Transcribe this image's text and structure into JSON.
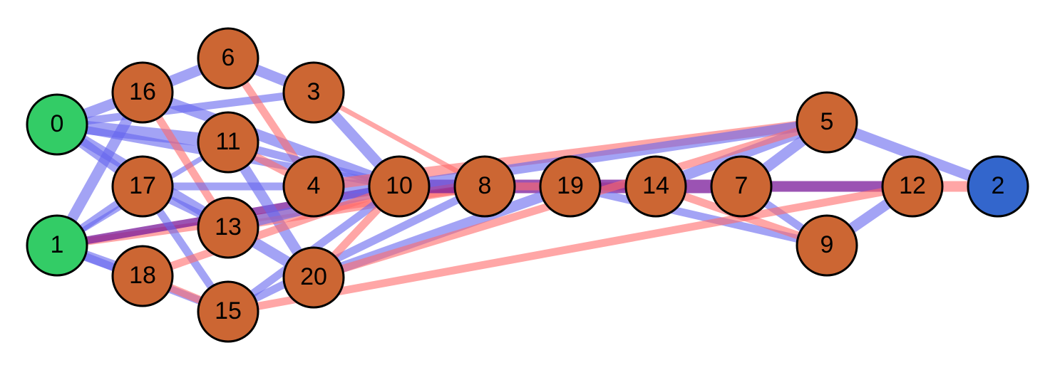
{
  "colors": {
    "source_node": "#33cc66",
    "sink_node": "#3366cc",
    "inner_node": "#cc6633",
    "node_stroke": "#000000",
    "edge_blue": "#6666ee",
    "edge_red": "#ff6b6b",
    "edge_purple": "#7a1a9a"
  },
  "nodes": [
    {
      "id": "0",
      "label": "0",
      "kind": "source"
    },
    {
      "id": "1",
      "label": "1",
      "kind": "source"
    },
    {
      "id": "2",
      "label": "2",
      "kind": "sink"
    },
    {
      "id": "3",
      "label": "3",
      "kind": "inner"
    },
    {
      "id": "4",
      "label": "4",
      "kind": "inner"
    },
    {
      "id": "5",
      "label": "5",
      "kind": "inner"
    },
    {
      "id": "6",
      "label": "6",
      "kind": "inner"
    },
    {
      "id": "7",
      "label": "7",
      "kind": "inner"
    },
    {
      "id": "8",
      "label": "8",
      "kind": "inner"
    },
    {
      "id": "9",
      "label": "9",
      "kind": "inner"
    },
    {
      "id": "10",
      "label": "10",
      "kind": "inner"
    },
    {
      "id": "11",
      "label": "11",
      "kind": "inner"
    },
    {
      "id": "12",
      "label": "12",
      "kind": "inner"
    },
    {
      "id": "13",
      "label": "13",
      "kind": "inner"
    },
    {
      "id": "14",
      "label": "14",
      "kind": "inner"
    },
    {
      "id": "15",
      "label": "15",
      "kind": "inner"
    },
    {
      "id": "16",
      "label": "16",
      "kind": "inner"
    },
    {
      "id": "17",
      "label": "17",
      "kind": "inner"
    },
    {
      "id": "18",
      "label": "18",
      "kind": "inner"
    },
    {
      "id": "19",
      "label": "19",
      "kind": "inner"
    },
    {
      "id": "20",
      "label": "20",
      "kind": "inner"
    }
  ],
  "edges": [
    {
      "from": "0",
      "to": "16",
      "color": "blue",
      "weight": 3
    },
    {
      "from": "0",
      "to": "11",
      "color": "blue",
      "weight": 4
    },
    {
      "from": "0",
      "to": "17",
      "color": "blue",
      "weight": 3
    },
    {
      "from": "0",
      "to": "3",
      "color": "blue",
      "weight": 2
    },
    {
      "from": "0",
      "to": "20",
      "color": "blue",
      "weight": 3
    },
    {
      "from": "0",
      "to": "10",
      "color": "blue",
      "weight": 2
    },
    {
      "from": "1",
      "to": "17",
      "color": "blue",
      "weight": 2
    },
    {
      "from": "1",
      "to": "16",
      "color": "blue",
      "weight": 3
    },
    {
      "from": "1",
      "to": "18",
      "color": "blue",
      "weight": 3
    },
    {
      "from": "1",
      "to": "15",
      "color": "blue",
      "weight": 2
    },
    {
      "from": "1",
      "to": "11",
      "color": "blue",
      "weight": 1
    },
    {
      "from": "1",
      "to": "8",
      "color": "red",
      "weight": 2
    },
    {
      "from": "1",
      "to": "10",
      "color": "purple",
      "weight": 2
    },
    {
      "from": "16",
      "to": "6",
      "color": "blue",
      "weight": 3
    },
    {
      "from": "16",
      "to": "10",
      "color": "blue",
      "weight": 3
    },
    {
      "from": "16",
      "to": "13",
      "color": "red",
      "weight": 2
    },
    {
      "from": "6",
      "to": "3",
      "color": "blue",
      "weight": 3
    },
    {
      "from": "6",
      "to": "4",
      "color": "red",
      "weight": 2
    },
    {
      "from": "3",
      "to": "10",
      "color": "blue",
      "weight": 3
    },
    {
      "from": "3",
      "to": "8",
      "color": "red",
      "weight": 1
    },
    {
      "from": "11",
      "to": "4",
      "color": "red",
      "weight": 2
    },
    {
      "from": "11",
      "to": "20",
      "color": "blue",
      "weight": 3
    },
    {
      "from": "11",
      "to": "10",
      "color": "blue",
      "weight": 2
    },
    {
      "from": "17",
      "to": "4",
      "color": "blue",
      "weight": 2
    },
    {
      "from": "17",
      "to": "15",
      "color": "blue",
      "weight": 2
    },
    {
      "from": "17",
      "to": "13",
      "color": "blue",
      "weight": 2
    },
    {
      "from": "13",
      "to": "8",
      "color": "red",
      "weight": 2
    },
    {
      "from": "13",
      "to": "10",
      "color": "blue",
      "weight": 3
    },
    {
      "from": "4",
      "to": "10",
      "color": "blue",
      "weight": 4
    },
    {
      "from": "4",
      "to": "5",
      "color": "red",
      "weight": 3
    },
    {
      "from": "10",
      "to": "8",
      "color": "purple",
      "weight": 4
    },
    {
      "from": "10",
      "to": "5",
      "color": "blue",
      "weight": 3
    },
    {
      "from": "8",
      "to": "19",
      "color": "purple",
      "weight": 4
    },
    {
      "from": "8",
      "to": "14",
      "color": "red",
      "weight": 2
    },
    {
      "from": "19",
      "to": "14",
      "color": "purple",
      "weight": 4
    },
    {
      "from": "19",
      "to": "9",
      "color": "blue",
      "weight": 2
    },
    {
      "from": "14",
      "to": "7",
      "color": "purple",
      "weight": 4
    },
    {
      "from": "14",
      "to": "9",
      "color": "red",
      "weight": 2
    },
    {
      "from": "14",
      "to": "5",
      "color": "blue",
      "weight": 3
    },
    {
      "from": "7",
      "to": "5",
      "color": "blue",
      "weight": 3
    },
    {
      "from": "7",
      "to": "9",
      "color": "blue",
      "weight": 2
    },
    {
      "from": "7",
      "to": "12",
      "color": "purple",
      "weight": 3
    },
    {
      "from": "5",
      "to": "2",
      "color": "blue",
      "weight": 3
    },
    {
      "from": "12",
      "to": "2",
      "color": "red",
      "weight": 3
    },
    {
      "from": "9",
      "to": "12",
      "color": "blue",
      "weight": 3
    },
    {
      "from": "18",
      "to": "10",
      "color": "red",
      "weight": 2
    },
    {
      "from": "18",
      "to": "15",
      "color": "red",
      "weight": 2
    },
    {
      "from": "15",
      "to": "12",
      "color": "red",
      "weight": 2
    },
    {
      "from": "15",
      "to": "10",
      "color": "blue",
      "weight": 2
    },
    {
      "from": "15",
      "to": "8",
      "color": "blue",
      "weight": 2
    },
    {
      "from": "20",
      "to": "19",
      "color": "blue",
      "weight": 3
    },
    {
      "from": "20",
      "to": "10",
      "color": "red",
      "weight": 2
    },
    {
      "from": "20",
      "to": "5",
      "color": "red",
      "weight": 2
    }
  ]
}
